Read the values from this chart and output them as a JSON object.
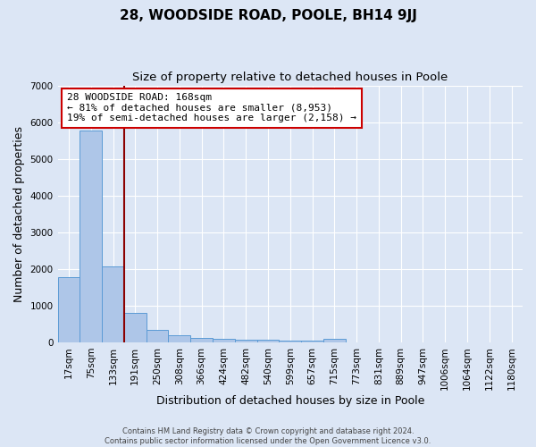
{
  "title": "28, WOODSIDE ROAD, POOLE, BH14 9JJ",
  "subtitle": "Size of property relative to detached houses in Poole",
  "xlabel": "Distribution of detached houses by size in Poole",
  "ylabel": "Number of detached properties",
  "categories": [
    "17sqm",
    "75sqm",
    "133sqm",
    "191sqm",
    "250sqm",
    "308sqm",
    "366sqm",
    "424sqm",
    "482sqm",
    "540sqm",
    "599sqm",
    "657sqm",
    "715sqm",
    "773sqm",
    "831sqm",
    "889sqm",
    "947sqm",
    "1006sqm",
    "1064sqm",
    "1122sqm",
    "1180sqm"
  ],
  "values": [
    1780,
    5780,
    2060,
    790,
    340,
    200,
    120,
    100,
    70,
    60,
    50,
    40,
    100,
    0,
    0,
    0,
    0,
    0,
    0,
    0,
    0
  ],
  "bar_color": "#aec6e8",
  "bar_edge_color": "#5b9bd5",
  "vline_color": "#8b0000",
  "annotation_text": "28 WOODSIDE ROAD: 168sqm\n← 81% of detached houses are smaller (8,953)\n19% of semi-detached houses are larger (2,158) →",
  "annotation_box_color": "#ffffff",
  "annotation_box_edge_color": "#cc0000",
  "ylim": [
    0,
    7000
  ],
  "background_color": "#dce6f5",
  "grid_color": "#ffffff",
  "footnote": "Contains HM Land Registry data © Crown copyright and database right 2024.\nContains public sector information licensed under the Open Government Licence v3.0.",
  "title_fontsize": 11,
  "subtitle_fontsize": 9.5,
  "axis_label_fontsize": 9,
  "tick_fontsize": 7.5,
  "footnote_fontsize": 6.0
}
